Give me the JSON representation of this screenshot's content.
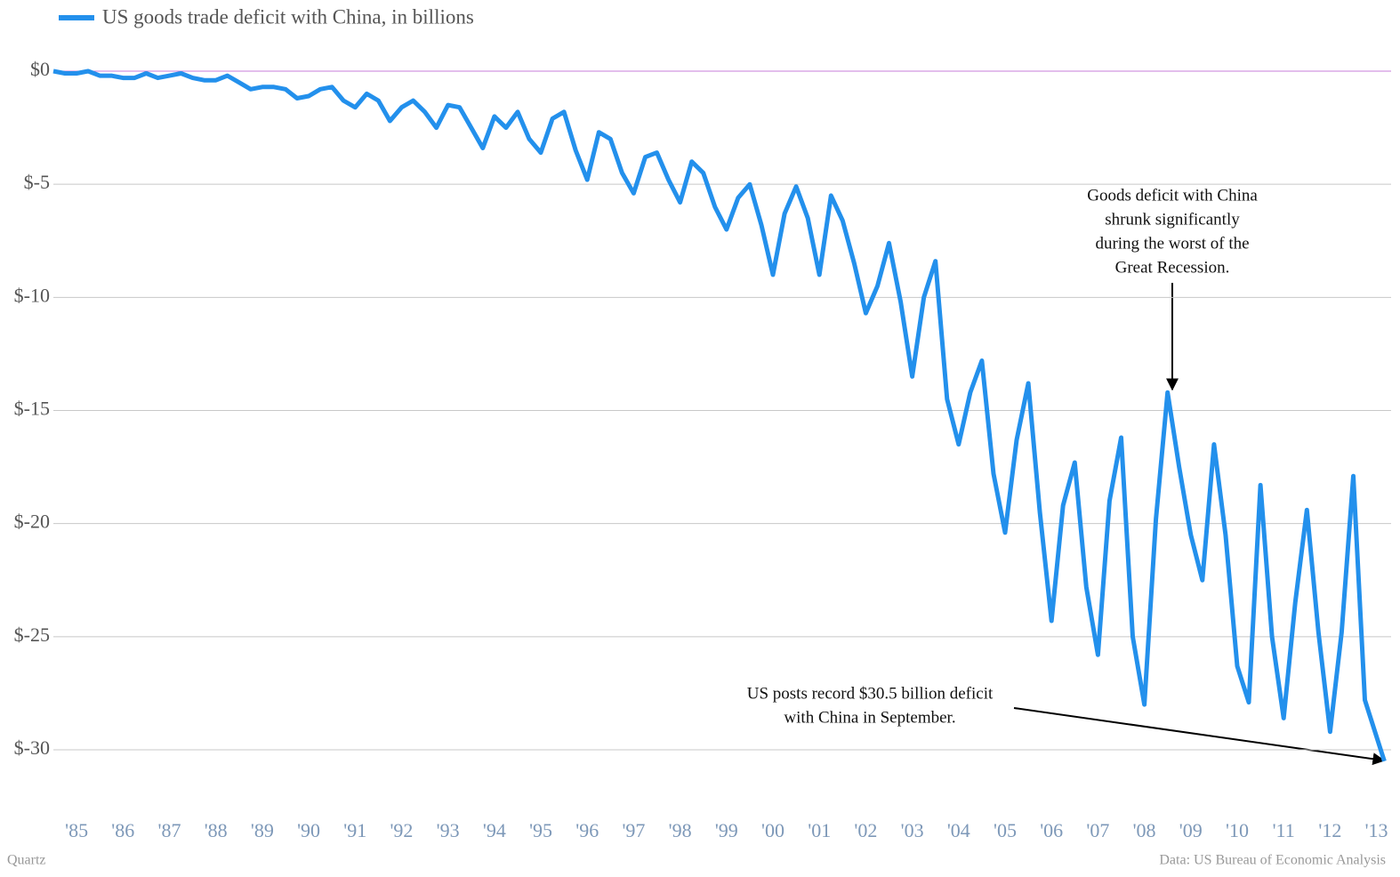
{
  "chart_data": {
    "type": "line",
    "series": [
      {
        "name": "US goods trade deficit with China, in billions",
        "color": "#2390ec",
        "x": [
          1985,
          1985.25,
          1985.5,
          1985.75,
          1986,
          1986.25,
          1986.5,
          1986.75,
          1987,
          1987.25,
          1987.5,
          1987.75,
          1988,
          1988.25,
          1988.5,
          1988.75,
          1989,
          1989.25,
          1989.5,
          1989.75,
          1990,
          1990.25,
          1990.5,
          1990.75,
          1991,
          1991.25,
          1991.5,
          1991.75,
          1992,
          1992.25,
          1992.5,
          1992.75,
          1993,
          1993.25,
          1993.5,
          1993.75,
          1994,
          1994.25,
          1994.5,
          1994.75,
          1995,
          1995.25,
          1995.5,
          1995.75,
          1996,
          1996.25,
          1996.5,
          1996.75,
          1997,
          1997.25,
          1997.5,
          1997.75,
          1998,
          1998.25,
          1998.5,
          1998.75,
          1999,
          1999.25,
          1999.5,
          1999.75,
          2000,
          2000.25,
          2000.5,
          2000.75,
          2001,
          2001.25,
          2001.5,
          2001.75,
          2002,
          2002.25,
          2002.5,
          2002.75,
          2003,
          2003.25,
          2003.5,
          2003.75,
          2004,
          2004.25,
          2004.5,
          2004.75,
          2005,
          2005.25,
          2005.5,
          2005.75,
          2006,
          2006.25,
          2006.5,
          2006.75,
          2007,
          2007.25,
          2007.5,
          2007.75,
          2008,
          2008.25,
          2008.5,
          2008.75,
          2009,
          2009.25,
          2009.5,
          2009.75,
          2010,
          2010.25,
          2010.5,
          2010.75,
          2011,
          2011.25,
          2011.5,
          2011.75,
          2012,
          2012.25,
          2012.5,
          2012.75,
          2013,
          2013.25,
          2013.67
        ],
        "values": [
          0,
          -0.1,
          -0.1,
          0,
          -0.2,
          -0.2,
          -0.3,
          -0.3,
          -0.1,
          -0.3,
          -0.2,
          -0.1,
          -0.3,
          -0.4,
          -0.4,
          -0.2,
          -0.5,
          -0.8,
          -0.7,
          -0.7,
          -0.8,
          -1.2,
          -1.1,
          -0.8,
          -0.7,
          -1.3,
          -1.6,
          -1,
          -1.3,
          -2.2,
          -1.6,
          -1.3,
          -1.8,
          -2.5,
          -1.5,
          -1.6,
          -2.5,
          -3.4,
          -2,
          -2.5,
          -1.8,
          -3,
          -3.6,
          -2.1,
          -1.8,
          -3.5,
          -4.8,
          -2.7,
          -3,
          -4.5,
          -5.4,
          -3.8,
          -3.6,
          -4.8,
          -5.8,
          -4,
          -4.5,
          -6,
          -7,
          -5.6,
          -5,
          -6.8,
          -9,
          -6.3,
          -5.1,
          -6.5,
          -9,
          -5.5,
          -6.6,
          -8.5,
          -10.7,
          -9.5,
          -7.6,
          -10.2,
          -13.5,
          -10,
          -8.4,
          -14.5,
          -16.5,
          -14.2,
          -12.8,
          -17.8,
          -20.4,
          -16.3,
          -13.8,
          -19.5,
          -24.3,
          -19.2,
          -17.3,
          -22.8,
          -25.8,
          -19,
          -16.2,
          -25,
          -28,
          -19.8,
          -14.2,
          -17.5,
          -20.5,
          -22.5,
          -16.5,
          -20.5,
          -26.3,
          -27.9,
          -18.3,
          -25,
          -28.6,
          -23.5,
          -19.4,
          -24.8,
          -29.2,
          -24.8,
          -17.9,
          -27.8,
          -30.5
        ]
      }
    ],
    "xlim": [
      1985,
      2013.7
    ],
    "xticks": [
      {
        "value": 1985.5,
        "label": "'85"
      },
      {
        "value": 1986.5,
        "label": "'86"
      },
      {
        "value": 1987.5,
        "label": "'87"
      },
      {
        "value": 1988.5,
        "label": "'88"
      },
      {
        "value": 1989.5,
        "label": "'89"
      },
      {
        "value": 1990.5,
        "label": "'90"
      },
      {
        "value": 1991.5,
        "label": "'91"
      },
      {
        "value": 1992.5,
        "label": "'92"
      },
      {
        "value": 1993.5,
        "label": "'93"
      },
      {
        "value": 1994.5,
        "label": "'94"
      },
      {
        "value": 1995.5,
        "label": "'95"
      },
      {
        "value": 1996.5,
        "label": "'96"
      },
      {
        "value": 1997.5,
        "label": "'97"
      },
      {
        "value": 1998.5,
        "label": "'98"
      },
      {
        "value": 1999.5,
        "label": "'99"
      },
      {
        "value": 2000.5,
        "label": "'00"
      },
      {
        "value": 2001.5,
        "label": "'01"
      },
      {
        "value": 2002.5,
        "label": "'02"
      },
      {
        "value": 2003.5,
        "label": "'03"
      },
      {
        "value": 2004.5,
        "label": "'04"
      },
      {
        "value": 2005.5,
        "label": "'05"
      },
      {
        "value": 2006.5,
        "label": "'06"
      },
      {
        "value": 2007.5,
        "label": "'07"
      },
      {
        "value": 2008.5,
        "label": "'08"
      },
      {
        "value": 2009.5,
        "label": "'09"
      },
      {
        "value": 2010.5,
        "label": "'10"
      },
      {
        "value": 2011.5,
        "label": "'11"
      },
      {
        "value": 2012.5,
        "label": "'12"
      },
      {
        "value": 2013.5,
        "label": "'13"
      }
    ],
    "ylim": [
      -32,
      1
    ],
    "yticks": [
      {
        "value": 0,
        "label": "$0"
      },
      {
        "value": -5,
        "label": "$-5"
      },
      {
        "value": -10,
        "label": "$-10"
      },
      {
        "value": -15,
        "label": "$-15"
      },
      {
        "value": -20,
        "label": "$-20"
      },
      {
        "value": -25,
        "label": "$-25"
      },
      {
        "value": -30,
        "label": "$-30"
      }
    ],
    "grid": true,
    "zero_line_color": "#c77dd8",
    "annotations": [
      {
        "lines": [
          "Goods deficit with China",
          "shrunk significantly",
          "during the worst of the",
          "Great Recession."
        ]
      },
      {
        "lines": [
          "US posts record $30.5 billion deficit",
          "with China in September."
        ]
      }
    ],
    "credit": "Quartz",
    "source": "Data: US Bureau of Economic Analysis"
  }
}
